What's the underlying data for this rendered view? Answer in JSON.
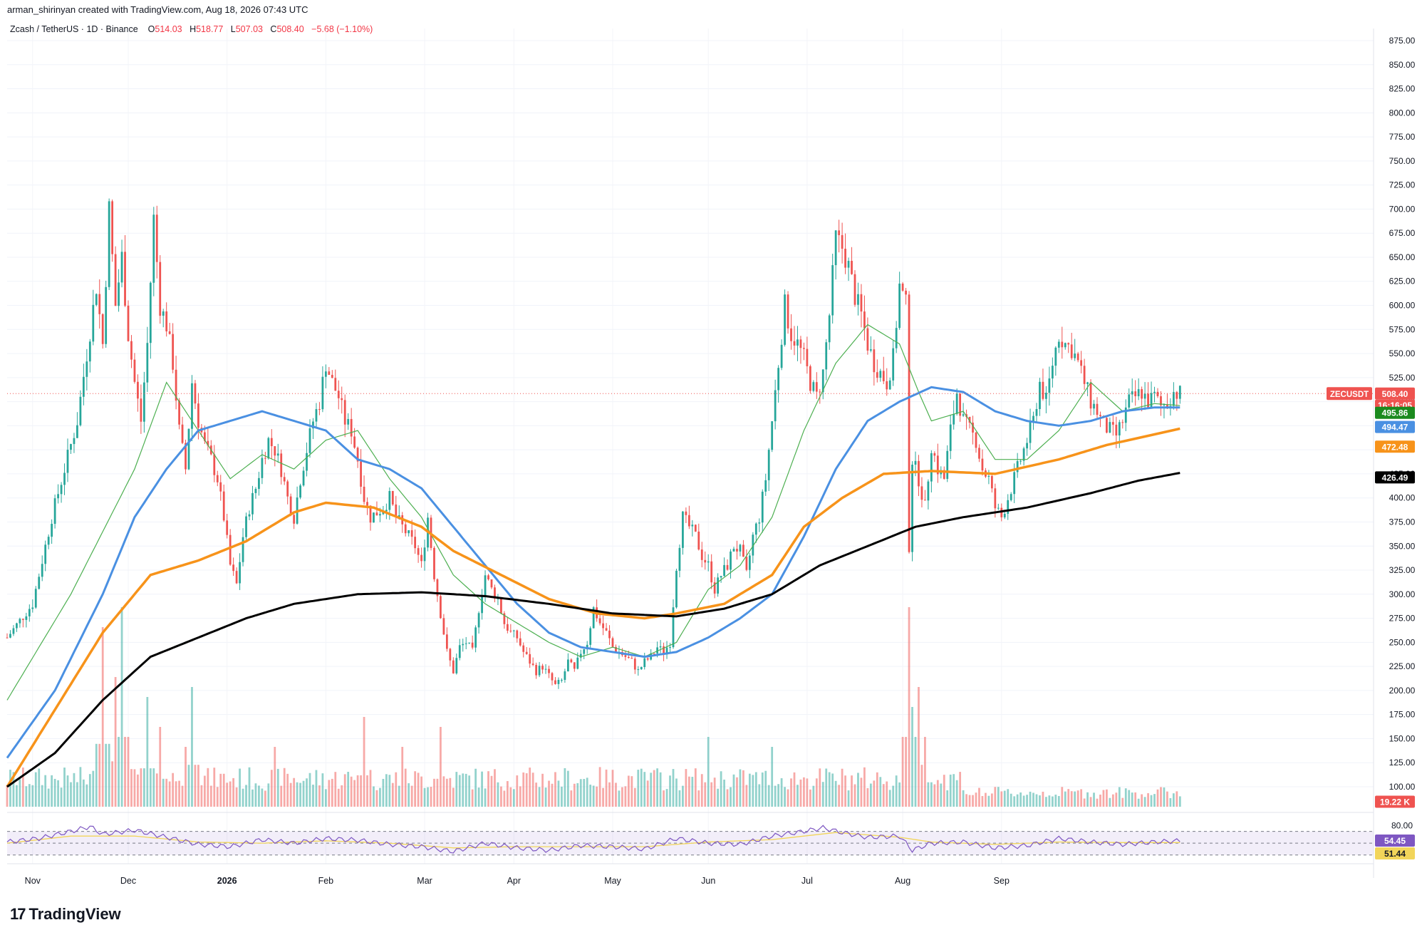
{
  "header": {
    "credit": "arman_shirinyan created with TradingView.com, Aug 18, 2026 07:43 UTC",
    "symbol_desc": "Zcash / TetherUS · 1D · Binance",
    "o_label": "O",
    "o_value": "514.03",
    "h_label": "H",
    "h_value": "518.77",
    "l_label": "L",
    "l_value": "507.03",
    "c_label": "C",
    "c_value": "508.40",
    "change": "−5.68 (−1.10%)"
  },
  "brand": {
    "name": "TradingView",
    "logo_glyph": "17"
  },
  "colors": {
    "up": "#26a69a",
    "down": "#ef5350",
    "ma20": "#4caf50",
    "ma50": "#4a90e2",
    "ma100": "#f7931a",
    "ma200": "#000000",
    "rsi": "#7e57c2",
    "rsi_ma": "#f2d55a"
  },
  "chart_data": {
    "type": "candlestick",
    "symbol": "ZECUSDT",
    "interval": "1D",
    "price_axis": {
      "ticks": [
        "875.00",
        "850.00",
        "825.00",
        "800.00",
        "775.00",
        "750.00",
        "725.00",
        "700.00",
        "675.00",
        "650.00",
        "625.00",
        "600.00",
        "575.00",
        "550.00",
        "525.00",
        "500.00",
        "475.00",
        "450.00",
        "425.00",
        "400.00",
        "375.00",
        "350.00",
        "325.00",
        "300.00",
        "275.00",
        "250.00",
        "225.00",
        "200.00",
        "175.00",
        "150.00",
        "125.00",
        "100.00"
      ],
      "range": [
        100,
        875
      ]
    },
    "time_axis": {
      "labels": [
        "Nov",
        "Dec",
        "2026",
        "Feb",
        "Mar",
        "Apr",
        "May",
        "Jun",
        "Jul",
        "Aug",
        "Sep"
      ]
    },
    "badges": {
      "last_symbol": "ZECUSDT",
      "last_price": "508.40",
      "countdown": "16:16:05",
      "ma20": "495.86",
      "ma50": "494.47",
      "ma100": "472.48",
      "ma200": "426.49",
      "volume": "19.22 K"
    },
    "rsi": {
      "ticks": [
        "80.00"
      ],
      "value": "54.45",
      "ma_value": "51.44",
      "upper": 70,
      "lower": 30
    },
    "price_path": [
      [
        0,
        255
      ],
      [
        8,
        290
      ],
      [
        14,
        380
      ],
      [
        22,
        480
      ],
      [
        28,
        620
      ],
      [
        30,
        560
      ],
      [
        32,
        700
      ],
      [
        34,
        600
      ],
      [
        36,
        650
      ],
      [
        38,
        570
      ],
      [
        40,
        520
      ],
      [
        42,
        480
      ],
      [
        44,
        560
      ],
      [
        46,
        690
      ],
      [
        48,
        600
      ],
      [
        50,
        580
      ],
      [
        52,
        540
      ],
      [
        54,
        470
      ],
      [
        56,
        430
      ],
      [
        58,
        520
      ],
      [
        60,
        480
      ],
      [
        62,
        455
      ],
      [
        64,
        440
      ],
      [
        66,
        420
      ],
      [
        68,
        380
      ],
      [
        70,
        330
      ],
      [
        72,
        310
      ],
      [
        74,
        360
      ],
      [
        76,
        390
      ],
      [
        78,
        410
      ],
      [
        80,
        440
      ],
      [
        82,
        460
      ],
      [
        84,
        450
      ],
      [
        86,
        430
      ],
      [
        88,
        400
      ],
      [
        90,
        380
      ],
      [
        92,
        420
      ],
      [
        94,
        450
      ],
      [
        96,
        480
      ],
      [
        98,
        500
      ],
      [
        100,
        540
      ],
      [
        102,
        520
      ],
      [
        104,
        505
      ],
      [
        106,
        480
      ],
      [
        108,
        470
      ],
      [
        110,
        440
      ],
      [
        112,
        400
      ],
      [
        114,
        380
      ],
      [
        116,
        385
      ],
      [
        118,
        390
      ],
      [
        120,
        400
      ],
      [
        122,
        380
      ],
      [
        124,
        370
      ],
      [
        126,
        360
      ],
      [
        128,
        350
      ],
      [
        130,
        330
      ],
      [
        132,
        380
      ],
      [
        134,
        320
      ],
      [
        136,
        280
      ],
      [
        138,
        240
      ],
      [
        140,
        220
      ],
      [
        142,
        245
      ],
      [
        144,
        250
      ],
      [
        146,
        240
      ],
      [
        148,
        285
      ],
      [
        150,
        320
      ],
      [
        152,
        305
      ],
      [
        154,
        295
      ],
      [
        156,
        270
      ],
      [
        158,
        260
      ],
      [
        160,
        255
      ],
      [
        162,
        240
      ],
      [
        164,
        230
      ],
      [
        166,
        220
      ],
      [
        168,
        225
      ],
      [
        170,
        215
      ],
      [
        172,
        205
      ],
      [
        174,
        210
      ],
      [
        176,
        230
      ],
      [
        178,
        220
      ],
      [
        180,
        240
      ],
      [
        182,
        250
      ],
      [
        184,
        285
      ],
      [
        186,
        270
      ],
      [
        188,
        260
      ],
      [
        190,
        245
      ],
      [
        192,
        240
      ],
      [
        194,
        235
      ],
      [
        196,
        230
      ],
      [
        198,
        220
      ],
      [
        200,
        230
      ],
      [
        202,
        235
      ],
      [
        204,
        245
      ],
      [
        206,
        240
      ],
      [
        208,
        250
      ],
      [
        210,
        330
      ],
      [
        212,
        380
      ],
      [
        214,
        370
      ],
      [
        216,
        360
      ],
      [
        218,
        340
      ],
      [
        220,
        330
      ],
      [
        222,
        305
      ],
      [
        224,
        320
      ],
      [
        226,
        330
      ],
      [
        228,
        350
      ],
      [
        230,
        345
      ],
      [
        232,
        320
      ],
      [
        234,
        360
      ],
      [
        236,
        380
      ],
      [
        238,
        420
      ],
      [
        240,
        480
      ],
      [
        242,
        540
      ],
      [
        244,
        600
      ],
      [
        246,
        570
      ],
      [
        248,
        560
      ],
      [
        250,
        545
      ],
      [
        252,
        520
      ],
      [
        254,
        505
      ],
      [
        256,
        530
      ],
      [
        258,
        590
      ],
      [
        260,
        670
      ],
      [
        262,
        660
      ],
      [
        264,
        640
      ],
      [
        266,
        610
      ],
      [
        268,
        590
      ],
      [
        270,
        560
      ],
      [
        272,
        540
      ],
      [
        274,
        530
      ],
      [
        276,
        520
      ],
      [
        278,
        545
      ],
      [
        280,
        620
      ],
      [
        282,
        600
      ],
      [
        283,
        350
      ],
      [
        284,
        440
      ],
      [
        286,
        420
      ],
      [
        288,
        390
      ],
      [
        290,
        455
      ],
      [
        292,
        430
      ],
      [
        294,
        420
      ],
      [
        296,
        470
      ],
      [
        298,
        510
      ],
      [
        300,
        480
      ],
      [
        302,
        470
      ],
      [
        304,
        460
      ],
      [
        306,
        430
      ],
      [
        308,
        420
      ],
      [
        310,
        390
      ],
      [
        312,
        380
      ],
      [
        314,
        400
      ],
      [
        316,
        420
      ],
      [
        318,
        440
      ],
      [
        320,
        460
      ],
      [
        322,
        480
      ],
      [
        324,
        520
      ],
      [
        326,
        500
      ],
      [
        328,
        540
      ],
      [
        330,
        570
      ],
      [
        332,
        560
      ],
      [
        334,
        555
      ],
      [
        336,
        540
      ],
      [
        338,
        520
      ],
      [
        340,
        500
      ],
      [
        342,
        490
      ],
      [
        344,
        475
      ],
      [
        346,
        470
      ],
      [
        348,
        465
      ],
      [
        350,
        480
      ],
      [
        352,
        500
      ],
      [
        354,
        505
      ],
      [
        356,
        510
      ],
      [
        358,
        500
      ],
      [
        360,
        505
      ],
      [
        362,
        495
      ],
      [
        364,
        500
      ],
      [
        366,
        510
      ],
      [
        368,
        508
      ]
    ],
    "n_days": 380,
    "ma20": [
      [
        0,
        190
      ],
      [
        20,
        300
      ],
      [
        40,
        430
      ],
      [
        50,
        520
      ],
      [
        60,
        470
      ],
      [
        70,
        420
      ],
      [
        80,
        445
      ],
      [
        90,
        430
      ],
      [
        100,
        460
      ],
      [
        110,
        470
      ],
      [
        120,
        420
      ],
      [
        130,
        380
      ],
      [
        140,
        320
      ],
      [
        150,
        290
      ],
      [
        160,
        270
      ],
      [
        170,
        250
      ],
      [
        180,
        235
      ],
      [
        190,
        245
      ],
      [
        200,
        235
      ],
      [
        210,
        250
      ],
      [
        220,
        305
      ],
      [
        230,
        330
      ],
      [
        240,
        380
      ],
      [
        250,
        470
      ],
      [
        260,
        540
      ],
      [
        270,
        580
      ],
      [
        280,
        560
      ],
      [
        286,
        510
      ],
      [
        290,
        480
      ],
      [
        300,
        490
      ],
      [
        310,
        440
      ],
      [
        320,
        440
      ],
      [
        330,
        470
      ],
      [
        340,
        520
      ],
      [
        350,
        490
      ],
      [
        360,
        498
      ],
      [
        368,
        496
      ]
    ],
    "ma50": [
      [
        0,
        130
      ],
      [
        15,
        200
      ],
      [
        30,
        300
      ],
      [
        40,
        380
      ],
      [
        50,
        430
      ],
      [
        60,
        470
      ],
      [
        70,
        480
      ],
      [
        80,
        490
      ],
      [
        90,
        480
      ],
      [
        100,
        470
      ],
      [
        110,
        440
      ],
      [
        120,
        430
      ],
      [
        130,
        410
      ],
      [
        140,
        370
      ],
      [
        150,
        330
      ],
      [
        160,
        290
      ],
      [
        170,
        260
      ],
      [
        180,
        245
      ],
      [
        190,
        240
      ],
      [
        200,
        235
      ],
      [
        210,
        240
      ],
      [
        220,
        255
      ],
      [
        230,
        275
      ],
      [
        240,
        300
      ],
      [
        250,
        360
      ],
      [
        260,
        430
      ],
      [
        270,
        480
      ],
      [
        280,
        500
      ],
      [
        290,
        515
      ],
      [
        300,
        510
      ],
      [
        310,
        490
      ],
      [
        320,
        480
      ],
      [
        330,
        475
      ],
      [
        340,
        480
      ],
      [
        350,
        490
      ],
      [
        360,
        494
      ],
      [
        368,
        494
      ]
    ],
    "ma100": [
      [
        0,
        100
      ],
      [
        15,
        180
      ],
      [
        30,
        260
      ],
      [
        45,
        320
      ],
      [
        60,
        335
      ],
      [
        75,
        355
      ],
      [
        90,
        385
      ],
      [
        100,
        395
      ],
      [
        115,
        390
      ],
      [
        130,
        370
      ],
      [
        140,
        345
      ],
      [
        155,
        320
      ],
      [
        170,
        295
      ],
      [
        185,
        280
      ],
      [
        200,
        275
      ],
      [
        210,
        280
      ],
      [
        225,
        290
      ],
      [
        240,
        320
      ],
      [
        250,
        370
      ],
      [
        262,
        400
      ],
      [
        275,
        425
      ],
      [
        290,
        428
      ],
      [
        310,
        425
      ],
      [
        330,
        440
      ],
      [
        345,
        455
      ],
      [
        360,
        466
      ],
      [
        368,
        472
      ]
    ],
    "ma200": [
      [
        0,
        100
      ],
      [
        15,
        135
      ],
      [
        30,
        190
      ],
      [
        45,
        235
      ],
      [
        60,
        255
      ],
      [
        75,
        275
      ],
      [
        90,
        290
      ],
      [
        110,
        300
      ],
      [
        130,
        302
      ],
      [
        150,
        298
      ],
      [
        170,
        290
      ],
      [
        190,
        280
      ],
      [
        210,
        277
      ],
      [
        225,
        285
      ],
      [
        240,
        300
      ],
      [
        255,
        330
      ],
      [
        270,
        350
      ],
      [
        285,
        370
      ],
      [
        300,
        380
      ],
      [
        320,
        390
      ],
      [
        340,
        405
      ],
      [
        355,
        418
      ],
      [
        368,
        426
      ]
    ],
    "volume_spikes": [
      [
        30,
        0.9
      ],
      [
        34,
        0.65
      ],
      [
        36,
        1.0
      ],
      [
        44,
        0.55
      ],
      [
        48,
        0.4
      ],
      [
        56,
        0.3
      ],
      [
        58,
        0.6
      ],
      [
        84,
        0.3
      ],
      [
        112,
        0.45
      ],
      [
        124,
        0.3
      ],
      [
        136,
        0.4
      ],
      [
        220,
        0.35
      ],
      [
        240,
        0.3
      ],
      [
        283,
        1.0
      ],
      [
        284,
        0.5
      ],
      [
        286,
        0.6
      ],
      [
        288,
        0.35
      ]
    ],
    "rsi_path": [
      [
        0,
        52
      ],
      [
        10,
        58
      ],
      [
        20,
        70
      ],
      [
        26,
        78
      ],
      [
        30,
        65
      ],
      [
        40,
        72
      ],
      [
        50,
        60
      ],
      [
        60,
        48
      ],
      [
        70,
        44
      ],
      [
        80,
        56
      ],
      [
        90,
        50
      ],
      [
        100,
        58
      ],
      [
        110,
        55
      ],
      [
        120,
        48
      ],
      [
        130,
        44
      ],
      [
        140,
        36
      ],
      [
        150,
        50
      ],
      [
        160,
        42
      ],
      [
        170,
        38
      ],
      [
        180,
        46
      ],
      [
        190,
        44
      ],
      [
        200,
        40
      ],
      [
        210,
        58
      ],
      [
        220,
        50
      ],
      [
        230,
        48
      ],
      [
        240,
        62
      ],
      [
        250,
        70
      ],
      [
        256,
        76
      ],
      [
        262,
        68
      ],
      [
        270,
        60
      ],
      [
        280,
        62
      ],
      [
        284,
        38
      ],
      [
        290,
        50
      ],
      [
        300,
        52
      ],
      [
        310,
        42
      ],
      [
        320,
        46
      ],
      [
        330,
        58
      ],
      [
        340,
        52
      ],
      [
        350,
        48
      ],
      [
        360,
        52
      ],
      [
        368,
        54
      ]
    ],
    "rsi_ma_path": [
      [
        0,
        50
      ],
      [
        20,
        62
      ],
      [
        40,
        62
      ],
      [
        60,
        52
      ],
      [
        80,
        50
      ],
      [
        100,
        54
      ],
      [
        120,
        50
      ],
      [
        140,
        42
      ],
      [
        160,
        44
      ],
      [
        180,
        44
      ],
      [
        200,
        44
      ],
      [
        220,
        52
      ],
      [
        240,
        56
      ],
      [
        260,
        68
      ],
      [
        280,
        60
      ],
      [
        290,
        52
      ],
      [
        310,
        48
      ],
      [
        330,
        52
      ],
      [
        350,
        51
      ],
      [
        368,
        51
      ]
    ]
  }
}
